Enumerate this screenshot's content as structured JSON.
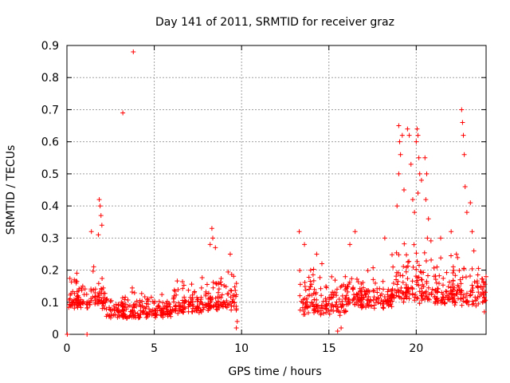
{
  "chart_data": {
    "type": "scatter",
    "title": "Day 141 of 2011, SRMTID for receiver graz",
    "xlabel": "GPS time / hours",
    "ylabel": "SRMTID / TECUs",
    "xlim": [
      0,
      24
    ],
    "ylim": [
      0,
      0.9
    ],
    "grid": true,
    "marker": "+",
    "color": "#ff0000",
    "xticks": [
      0,
      5,
      10,
      15,
      20
    ],
    "xtick_labels": [
      "0",
      "5",
      "10",
      "15",
      "20"
    ],
    "yticks": [
      0,
      0.1,
      0.2,
      0.3,
      0.4,
      0.5,
      0.6,
      0.7,
      0.8,
      0.9
    ],
    "ytick_labels": [
      "0",
      "0.1",
      "0.2",
      "0.3",
      "0.4",
      "0.5",
      "0.6",
      "0.7",
      "0.8",
      "0.9"
    ],
    "series": [
      {
        "name": "SRMTID",
        "points": [
          [
            0.02,
            0.0
          ],
          [
            1.15,
            0.0
          ],
          [
            3.2,
            0.69
          ],
          [
            3.8,
            0.88
          ],
          [
            1.85,
            0.42
          ],
          [
            1.9,
            0.4
          ],
          [
            1.95,
            0.37
          ],
          [
            2.0,
            0.34
          ],
          [
            1.8,
            0.31
          ],
          [
            1.4,
            0.32
          ],
          [
            8.3,
            0.33
          ],
          [
            8.35,
            0.3
          ],
          [
            8.2,
            0.28
          ],
          [
            8.5,
            0.27
          ],
          [
            9.35,
            0.25
          ],
          [
            9.7,
            0.02
          ],
          [
            9.75,
            0.04
          ],
          [
            13.3,
            0.32
          ],
          [
            13.6,
            0.28
          ],
          [
            14.3,
            0.25
          ],
          [
            14.6,
            0.22
          ],
          [
            15.5,
            0.01
          ],
          [
            15.7,
            0.02
          ],
          [
            16.2,
            0.28
          ],
          [
            16.5,
            0.32
          ],
          [
            18.2,
            0.3
          ],
          [
            18.9,
            0.4
          ],
          [
            19.0,
            0.65
          ],
          [
            19.05,
            0.6
          ],
          [
            19.1,
            0.56
          ],
          [
            19.0,
            0.5
          ],
          [
            19.2,
            0.62
          ],
          [
            19.3,
            0.45
          ],
          [
            19.5,
            0.64
          ],
          [
            19.6,
            0.62
          ],
          [
            19.7,
            0.53
          ],
          [
            19.8,
            0.42
          ],
          [
            19.9,
            0.38
          ],
          [
            20.0,
            0.6
          ],
          [
            20.05,
            0.64
          ],
          [
            20.1,
            0.62
          ],
          [
            20.15,
            0.55
          ],
          [
            20.2,
            0.5
          ],
          [
            20.1,
            0.44
          ],
          [
            20.3,
            0.48
          ],
          [
            20.5,
            0.55
          ],
          [
            20.6,
            0.5
          ],
          [
            20.55,
            0.42
          ],
          [
            20.7,
            0.36
          ],
          [
            21.4,
            0.3
          ],
          [
            22.0,
            0.32
          ],
          [
            22.3,
            0.25
          ],
          [
            22.6,
            0.7
          ],
          [
            22.65,
            0.66
          ],
          [
            22.7,
            0.62
          ],
          [
            22.75,
            0.56
          ],
          [
            22.8,
            0.46
          ],
          [
            22.9,
            0.38
          ],
          [
            23.1,
            0.41
          ],
          [
            23.2,
            0.32
          ],
          [
            23.3,
            0.26
          ],
          [
            23.5,
            0.15
          ],
          [
            23.8,
            0.1
          ],
          [
            23.9,
            0.07
          ]
        ],
        "dense_segments": [
          {
            "x_range": [
              0.05,
              2.2
            ],
            "y_range": [
              0.05,
              0.24
            ]
          },
          {
            "x_range": [
              2.2,
              6.0
            ],
            "y_range": [
              0.03,
              0.16
            ]
          },
          {
            "x_range": [
              6.0,
              8.2
            ],
            "y_range": [
              0.04,
              0.2
            ]
          },
          {
            "x_range": [
              8.2,
              9.75
            ],
            "y_range": [
              0.04,
              0.25
            ]
          },
          {
            "x_range": [
              13.3,
              16.0
            ],
            "y_range": [
              0.02,
              0.26
            ]
          },
          {
            "x_range": [
              16.0,
              18.6
            ],
            "y_range": [
              0.05,
              0.25
            ]
          },
          {
            "x_range": [
              18.6,
              21.0
            ],
            "y_range": [
              0.05,
              0.35
            ]
          },
          {
            "x_range": [
              21.0,
              24.0
            ],
            "y_range": [
              0.05,
              0.3
            ]
          }
        ]
      }
    ]
  }
}
